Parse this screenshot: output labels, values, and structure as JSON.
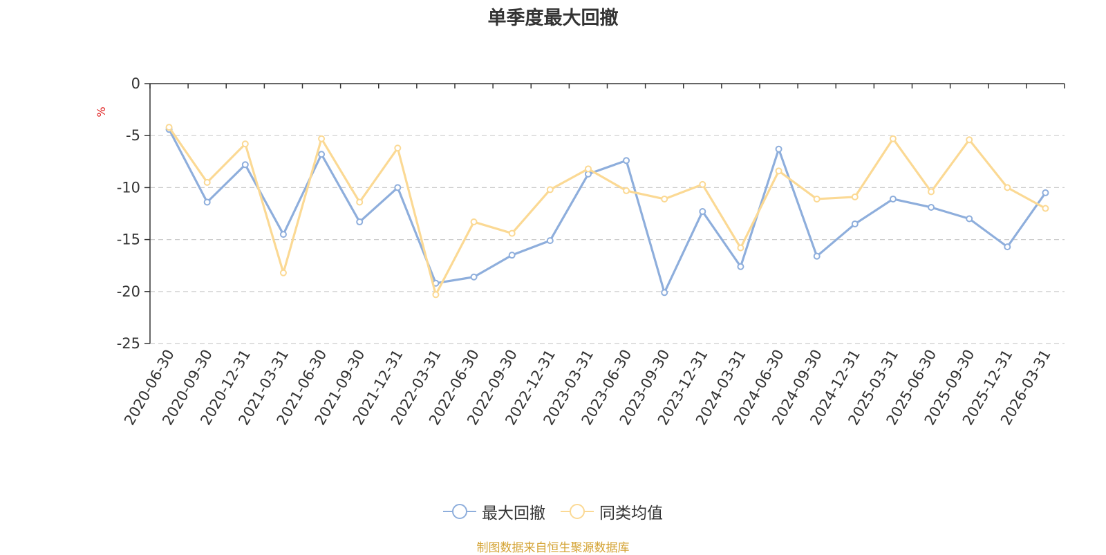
{
  "chart_data": {
    "type": "line",
    "title": "单季度最大回撤",
    "ylabel": "%",
    "xlabel": "",
    "ylim": [
      -25,
      0
    ],
    "yticks": [
      0,
      -5,
      -10,
      -15,
      -20,
      -25
    ],
    "categories": [
      "2020-06-30",
      "2020-09-30",
      "2020-12-31",
      "2021-03-31",
      "2021-06-30",
      "2021-09-30",
      "2021-12-31",
      "2022-03-31",
      "2022-06-30",
      "2022-09-30",
      "2022-12-31",
      "2023-03-31",
      "2023-06-30",
      "2023-09-30",
      "2023-12-31",
      "2024-03-31",
      "2024-06-30",
      "2024-09-30",
      "2024-12-31",
      "2025-03-31",
      "2025-06-30",
      "2025-09-30",
      "2025-12-31",
      "2026-03-31"
    ],
    "series": [
      {
        "name": "最大回撤",
        "color": "#8eaedc",
        "values": [
          -4.4,
          -11.4,
          -7.8,
          -14.5,
          -6.8,
          -13.3,
          -10.0,
          -19.2,
          -18.6,
          -16.5,
          -15.1,
          -8.7,
          -7.4,
          -20.1,
          -12.3,
          -17.6,
          -6.3,
          -16.6,
          -13.5,
          -11.1,
          -11.9,
          -13.0,
          -15.7,
          -10.5
        ]
      },
      {
        "name": "同类均值",
        "color": "#fbd994",
        "values": [
          -4.2,
          -9.5,
          -5.8,
          -18.2,
          -5.3,
          -11.4,
          -6.2,
          -20.3,
          -13.3,
          -14.4,
          -10.2,
          -8.2,
          -10.3,
          -11.1,
          -9.7,
          -15.8,
          -8.4,
          -11.1,
          -10.9,
          -5.3,
          -10.4,
          -5.4,
          -10.0,
          -12.0
        ]
      }
    ],
    "grid": true,
    "legend_position": "bottom-center"
  },
  "source_text": "制图数据来自恒生聚源数据库",
  "source_color": "#d4a334",
  "axis_color": "#333333",
  "grid_color": "#cccccc",
  "unit_color": "#e02020"
}
